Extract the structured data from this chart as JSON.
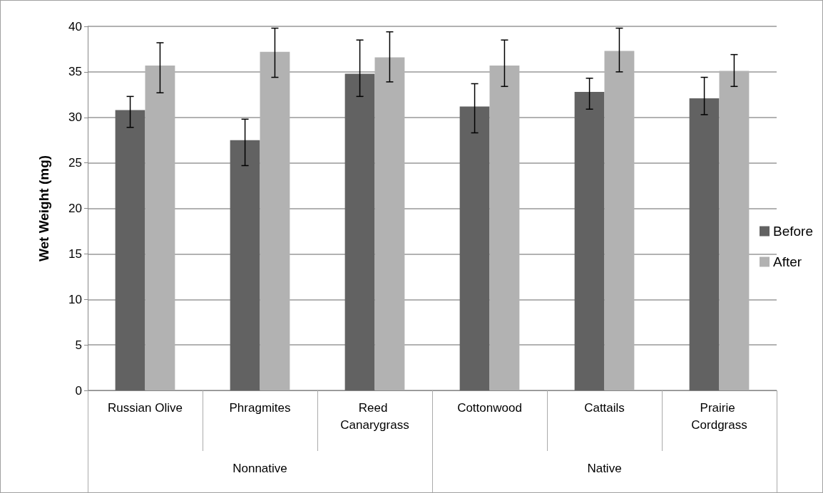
{
  "chart_data": {
    "type": "bar",
    "ylabel": "Wet Weight (mg)",
    "categories": [
      "Russian Olive",
      "Phragmites",
      "Reed Canarygrass",
      "Cottonwood",
      "Cattails",
      "Prairie Cordgrass"
    ],
    "annotations": [
      "Nonnative",
      "Native"
    ],
    "series": [
      {
        "name": "Before",
        "color": "#626262",
        "values": [
          30.8,
          27.5,
          34.8,
          31.2,
          32.8,
          32.1
        ],
        "errors": [
          [
            28.9,
            32.3
          ],
          [
            24.7,
            29.8
          ],
          [
            32.3,
            38.5
          ],
          [
            28.3,
            33.7
          ],
          [
            30.9,
            34.3
          ],
          [
            30.3,
            34.4
          ]
        ]
      },
      {
        "name": "After",
        "color": "#b2b2b2",
        "values": [
          35.7,
          37.2,
          36.6,
          35.7,
          37.3,
          35.1
        ],
        "errors": [
          [
            32.7,
            38.2
          ],
          [
            34.4,
            39.8
          ],
          [
            33.9,
            39.4
          ],
          [
            33.4,
            38.5
          ],
          [
            35.0,
            39.8
          ],
          [
            33.4,
            36.9
          ]
        ]
      }
    ],
    "ylim": [
      0,
      40
    ],
    "yticks": [
      0,
      5,
      10,
      15,
      20,
      25,
      30,
      35,
      40
    ],
    "grid": "y",
    "legend": "right"
  }
}
